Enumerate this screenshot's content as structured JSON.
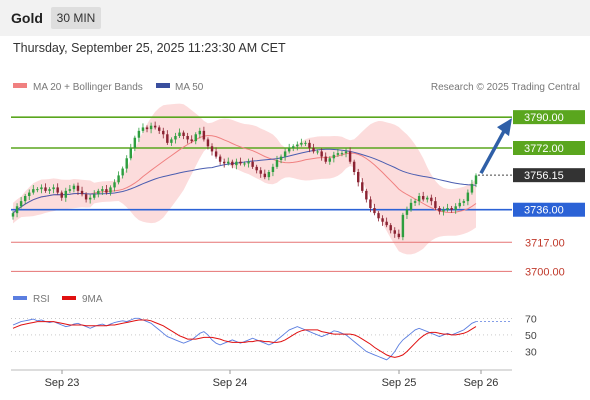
{
  "header": {
    "symbol": "Gold",
    "timeframe": "30 MIN",
    "datetime": "Thursday, September 25, 2025 11:23:30 AM CET"
  },
  "legend": {
    "ma20": "MA 20 + Bollinger Bands",
    "ma50": "MA 50",
    "credit": "Research © 2025 Trading Central",
    "rsi": "RSI",
    "rsi_ma": "9MA"
  },
  "colors": {
    "up_candle": "#2e9e3f",
    "down_candle": "#8b2332",
    "bollinger_fill": "#fbd3d3",
    "ma20": "#f08080",
    "ma50": "#4a5db0",
    "resistance": "#5aa61e",
    "pivot": "#2b62d6",
    "support": "#e57373",
    "last_price_tag": "#333333",
    "arrow": "#2f5fa7",
    "rsi": "#5b7ee0",
    "rsi_ma": "#e01010"
  },
  "chart_data": [
    {
      "type": "candlestick",
      "title": "Gold 30 MIN",
      "x_ticks": [
        "Sep 23",
        "Sep 24",
        "Sep 25",
        "Sep 26"
      ],
      "ylim": [
        3695,
        3800
      ],
      "last_price": 3756.15,
      "levels": [
        {
          "label": "3790.00",
          "value": 3790,
          "kind": "resistance"
        },
        {
          "label": "3772.00",
          "value": 3772,
          "kind": "resistance"
        },
        {
          "label": "3736.00",
          "value": 3736,
          "kind": "pivot"
        },
        {
          "label": "3717.00",
          "value": 3717,
          "kind": "support"
        },
        {
          "label": "3700.00",
          "value": 3700,
          "kind": "support"
        }
      ],
      "close_approx": [
        3734,
        3738,
        3741,
        3744,
        3746,
        3748,
        3748,
        3749,
        3747,
        3748,
        3749,
        3746,
        3743,
        3747,
        3748,
        3750,
        3747,
        3745,
        3742,
        3743,
        3745,
        3747,
        3748,
        3746,
        3749,
        3752,
        3756,
        3760,
        3766,
        3772,
        3778,
        3782,
        3784,
        3783,
        3785,
        3784,
        3782,
        3780,
        3775,
        3777,
        3779,
        3781,
        3779,
        3777,
        3776,
        3780,
        3782,
        3777,
        3773,
        3770,
        3767,
        3764,
        3763,
        3764,
        3762,
        3764,
        3763,
        3763,
        3764,
        3761,
        3759,
        3757,
        3755,
        3758,
        3761,
        3765,
        3767,
        3770,
        3772,
        3773,
        3774,
        3775,
        3775,
        3772,
        3770,
        3770,
        3767,
        3764,
        3766,
        3768,
        3769,
        3769,
        3770,
        3764,
        3758,
        3752,
        3747,
        3742,
        3737,
        3734,
        3731,
        3729,
        3727,
        3724,
        3722,
        3720,
        3733,
        3736,
        3740,
        3741,
        3744,
        3742,
        3743,
        3741,
        3737,
        3735,
        3736,
        3737,
        3736,
        3738,
        3740,
        3741,
        3746,
        3751,
        3756
      ]
    },
    {
      "type": "line",
      "title": "RSI",
      "yticks": [
        30,
        50,
        70
      ],
      "series": [
        {
          "name": "RSI",
          "values": [
            62,
            64,
            66,
            67,
            68,
            69,
            67,
            68,
            66,
            65,
            66,
            64,
            62,
            60,
            61,
            63,
            64,
            62,
            60,
            58,
            60,
            62,
            63,
            61,
            63,
            65,
            66,
            67,
            66,
            68,
            70,
            70,
            68,
            66,
            64,
            60,
            56,
            52,
            48,
            46,
            44,
            42,
            40,
            42,
            44,
            48,
            52,
            54,
            50,
            44,
            40,
            38,
            40,
            42,
            44,
            42,
            40,
            42,
            44,
            46,
            44,
            42,
            40,
            38,
            40,
            44,
            48,
            52,
            56,
            58,
            60,
            58,
            56,
            54,
            52,
            50,
            48,
            50,
            52,
            55,
            54,
            52,
            50,
            46,
            42,
            38,
            34,
            30,
            28,
            26,
            24,
            22,
            20,
            24,
            30,
            38,
            44,
            48,
            52,
            56,
            58,
            56,
            54,
            52,
            50,
            48,
            50,
            52,
            50,
            52,
            54,
            56,
            60,
            64,
            66
          ]
        },
        {
          "name": "9MA",
          "values": [
            58,
            60,
            62,
            63,
            64,
            65,
            66,
            66,
            66,
            66,
            66,
            65,
            64,
            63,
            62,
            62,
            62,
            62,
            61,
            61,
            61,
            61,
            61,
            61,
            62,
            62,
            63,
            64,
            65,
            66,
            67,
            68,
            68,
            68,
            67,
            65,
            63,
            61,
            58,
            55,
            52,
            49,
            47,
            45,
            45,
            45,
            46,
            47,
            47,
            47,
            46,
            45,
            43,
            42,
            41,
            41,
            41,
            41,
            42,
            42,
            43,
            43,
            42,
            42,
            41,
            41,
            42,
            44,
            47,
            50,
            53,
            55,
            56,
            56,
            56,
            56,
            54,
            53,
            52,
            51,
            51,
            51,
            51,
            51,
            50,
            48,
            45,
            42,
            39,
            35,
            32,
            29,
            26,
            24,
            23,
            24,
            26,
            30,
            35,
            40,
            45,
            49,
            52,
            53,
            53,
            52,
            51,
            51,
            50,
            50,
            51,
            52,
            54,
            57,
            60
          ]
        }
      ]
    }
  ]
}
